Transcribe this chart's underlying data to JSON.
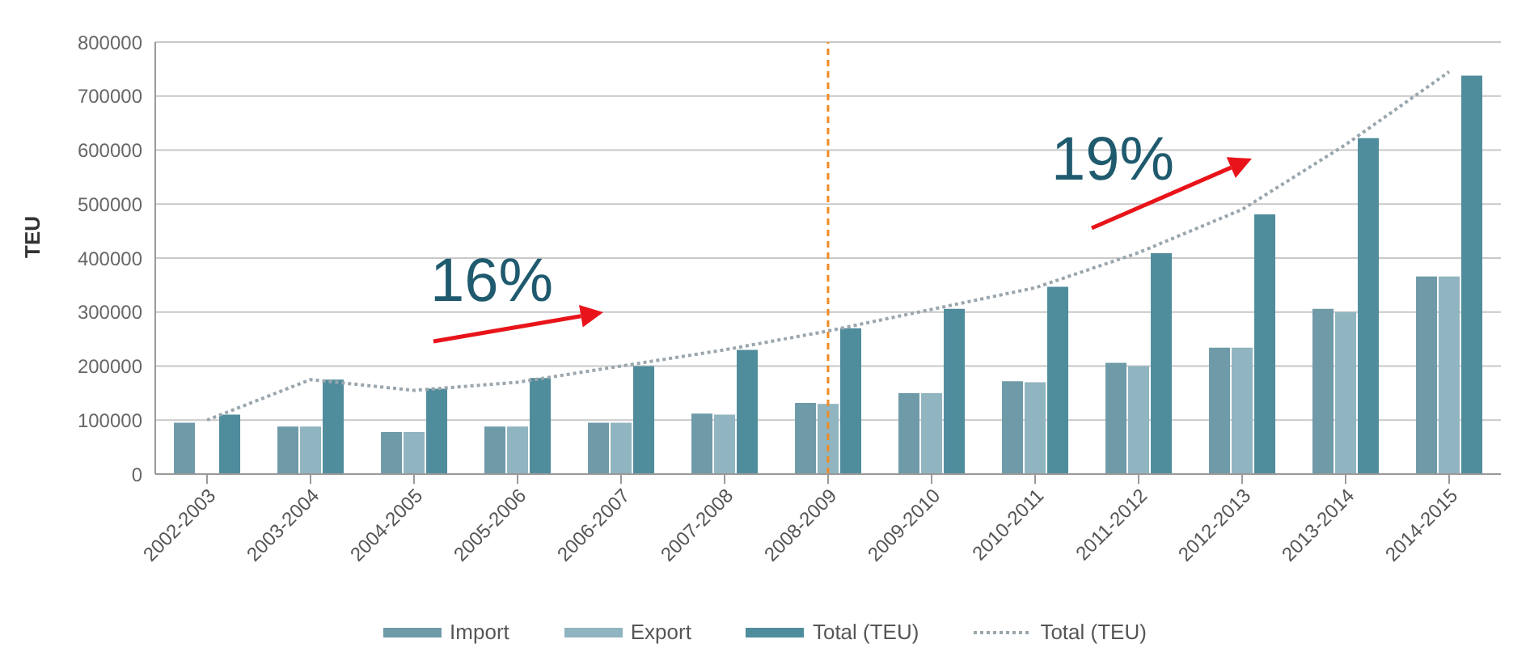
{
  "chart_data": {
    "type": "bar",
    "ylabel": "TEU",
    "categories": [
      "2002-2003",
      "2003-2004",
      "2004-2005",
      "2005-2006",
      "2006-2007",
      "2007-2008",
      "2008-2009",
      "2009-2010",
      "2010-2011",
      "2011-2012",
      "2012-2013",
      "2013-2014",
      "2014-2015"
    ],
    "series": [
      {
        "name": "Import",
        "color": "#6f9aa8",
        "values": [
          95000,
          88000,
          78000,
          88000,
          95000,
          112000,
          132000,
          150000,
          172000,
          206000,
          234000,
          306000,
          366000
        ]
      },
      {
        "name": "Export",
        "color": "#90b4c0",
        "values": [
          null,
          88000,
          78000,
          88000,
          95000,
          110000,
          130000,
          150000,
          170000,
          200000,
          234000,
          300000,
          366000
        ]
      },
      {
        "name": "Total (TEU)",
        "color": "#4f8c9c",
        "values": [
          110000,
          175000,
          158000,
          178000,
          200000,
          230000,
          270000,
          306000,
          347000,
          409000,
          481000,
          622000,
          738000
        ]
      },
      {
        "name": "Total (TEU)",
        "type": "line",
        "color": "#9aa6ad",
        "line_style": "dotted",
        "values": [
          100000,
          175000,
          155000,
          170000,
          200000,
          230000,
          265000,
          305000,
          345000,
          410000,
          490000,
          610000,
          745000
        ]
      }
    ],
    "ylim": [
      0,
      800000
    ],
    "yticks": [
      0,
      100000,
      200000,
      300000,
      400000,
      500000,
      600000,
      700000,
      800000
    ],
    "grid": "y",
    "legend": "bottom",
    "marker": "none",
    "ref_lines": [
      {
        "axis": "x",
        "value": "2008-2009",
        "color": "#f08a24",
        "line_style": "dashed"
      }
    ],
    "annotations": [
      "16%",
      "19%"
    ]
  }
}
